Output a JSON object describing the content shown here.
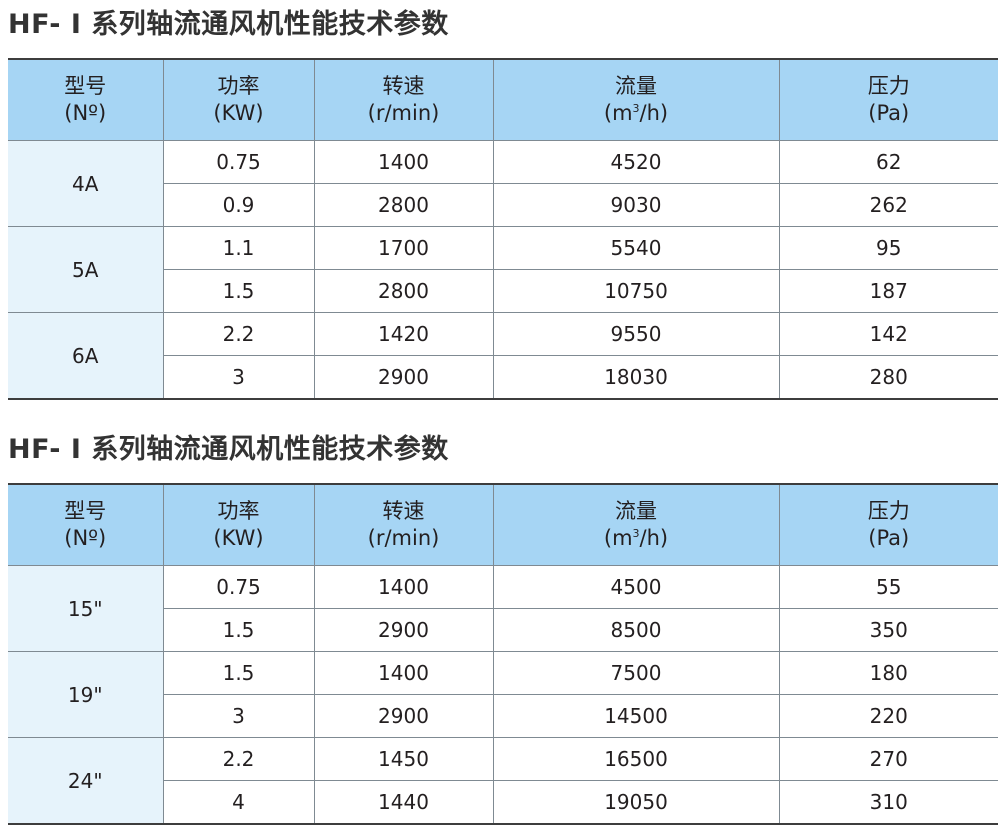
{
  "tables": [
    {
      "title": "HF- I 系列轴流通风机性能技术参数",
      "headers": {
        "model": [
          "型号",
          "(Nº)"
        ],
        "power": [
          "功率",
          "(KW)"
        ],
        "speed": [
          "转速",
          "(r/min)"
        ],
        "flow": [
          "流量",
          "(m",
          "3",
          "/h)"
        ],
        "pressure": [
          "压力",
          "(Pa)"
        ]
      },
      "groups": [
        {
          "model": "4A",
          "rows": [
            {
              "power": "0.75",
              "speed": "1400",
              "flow": "4520",
              "pressure": "62"
            },
            {
              "power": "0.9",
              "speed": "2800",
              "flow": "9030",
              "pressure": "262"
            }
          ]
        },
        {
          "model": "5A",
          "rows": [
            {
              "power": "1.1",
              "speed": "1700",
              "flow": "5540",
              "pressure": "95"
            },
            {
              "power": "1.5",
              "speed": "2800",
              "flow": "10750",
              "pressure": "187"
            }
          ]
        },
        {
          "model": "6A",
          "rows": [
            {
              "power": "2.2",
              "speed": "1420",
              "flow": "9550",
              "pressure": "142"
            },
            {
              "power": "3",
              "speed": "2900",
              "flow": "18030",
              "pressure": "280"
            }
          ]
        }
      ]
    },
    {
      "title": "HF- I 系列轴流通风机性能技术参数",
      "headers": {
        "model": [
          "型号",
          "(Nº)"
        ],
        "power": [
          "功率",
          "(KW)"
        ],
        "speed": [
          "转速",
          "(r/min)"
        ],
        "flow": [
          "流量",
          "(m",
          "3",
          "/h)"
        ],
        "pressure": [
          "压力",
          "(Pa)"
        ]
      },
      "groups": [
        {
          "model": "15\"",
          "rows": [
            {
              "power": "0.75",
              "speed": "1400",
              "flow": "4500",
              "pressure": "55"
            },
            {
              "power": "1.5",
              "speed": "2900",
              "flow": "8500",
              "pressure": "350"
            }
          ]
        },
        {
          "model": "19\"",
          "rows": [
            {
              "power": "1.5",
              "speed": "1400",
              "flow": "7500",
              "pressure": "180"
            },
            {
              "power": "3",
              "speed": "2900",
              "flow": "14500",
              "pressure": "220"
            }
          ]
        },
        {
          "model": "24\"",
          "rows": [
            {
              "power": "2.2",
              "speed": "1450",
              "flow": "16500",
              "pressure": "270"
            },
            {
              "power": "4",
              "speed": "1440",
              "flow": "19050",
              "pressure": "310"
            }
          ]
        }
      ]
    }
  ]
}
